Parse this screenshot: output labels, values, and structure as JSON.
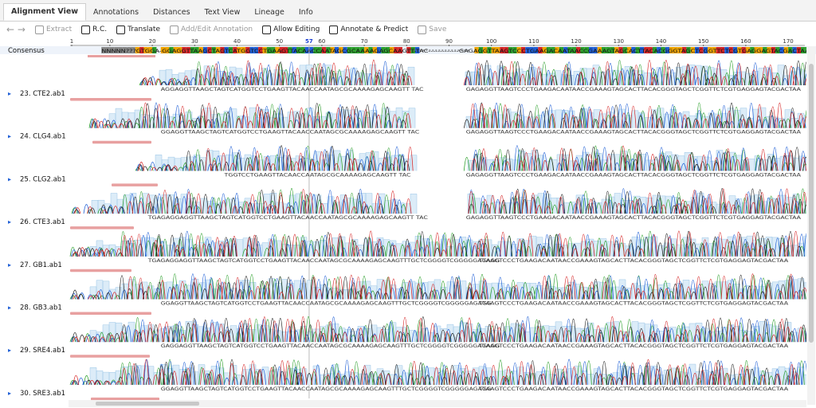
{
  "tabs": [
    "Alignment View",
    "Annotations",
    "Distances",
    "Text View",
    "Lineage",
    "Info"
  ],
  "toolbar": [
    "Extract",
    "R.C.",
    "Translate",
    "Add/Edit Annotation",
    "Allow Editing",
    "Annotate & Predict",
    "Save"
  ],
  "ruler": {
    "labels": [
      1,
      10,
      20,
      30,
      40,
      50,
      60,
      70,
      80,
      90,
      100,
      110,
      120,
      130,
      140,
      150,
      160,
      170
    ],
    "cursor": 57
  },
  "consensus": {
    "label": "Consensus",
    "sequence": "NNNNN???GTGGA-GGAGGTTAAGCTAGTCATGGTCCTGAAGTTACAACCAATAGCGCAAAAGAGCAAGTT-TAC-------------GAGAGGTTAAGTCCCTGAAGACAATAACCGAAAGTAGCACTTACACGGGTAGCTCGGTTCTCGTGAGGAGTACGACTAA"
  },
  "rows": [
    {
      "name": "23. CTE2.ab1",
      "seq_a": "AGGAGGTTAAGCTAGTCATGGTCCTGAAGTTACAACCAATAGCGCAAAAGAGCAAGTT TAC",
      "seq_b": "GAGAGGTTAAGTCCCTGAAGACAATAACCGAAAGTAGCACTTACACGGGTAGCTCGGTTCTCGTGAGGAGTACGACTAA"
    },
    {
      "name": "24. CLG4.ab1",
      "seq_a": "GGAGGTTAAGCTAGTCATGGTCCTGAAGTTACAACCAATAGCGCAAAAGAGCAAGTT TAC",
      "seq_b": "GAGAGGTTAAGTCCCTGAAGACAATAACCGAAAGTAGCACTTACACGGGTAGCTCGGTTCTCGTGAGGAGTACGACTAA"
    },
    {
      "name": "25. CLG2.ab1",
      "seq_a": "TGGTCCTGAAGTTACAACCAATAGCGCAAAAGAGCAAGTT TAC",
      "seq_b": "GAGAGGTTAAGTCCCTGAAGACAATAACCGAAAGTAGCACTTACACGGGTAGCTCGGTTCTCGTGAGGAGTACGACTAA"
    },
    {
      "name": "26. CTE3.ab1",
      "seq_a": "TGAGAGGAGGTTAAGCTAGTCATGGTCCTGAAGTTACAACCAATAGCGCAAAAGAGCAAGTT TAC",
      "seq_b": "GAGAGGTTAAGTCCCTGAAGACAATAACCGAAAGTAGCACTTACACGGGTAGCTCGGTTCTCGTGAGGAGTACGACTAA"
    },
    {
      "name": "27. GB1.ab1",
      "seq_a": "TGAGAGGAGGTTAAGCTAGTCATGGTCCTGAAGTTACAACCAATAGCGCAAAAGAGCAAGTTTGCTCGGGGTCGGGGGAGAGG",
      "seq_b": "TTAAGTCCCTGAAGACAATAACCGAAAGTAGCACTTACACGGGTAGCTCGGTTCTCGTGAGGAGTACGACTAA"
    },
    {
      "name": "28. GB3.ab1",
      "seq_a": "GGAGGTTAAGCTAGTCATGGTCCTGAAGTTACAACCAATAGCGCAAAAGAGCAAGTTTGCTCGGGGTCGGGGGAGAGG",
      "seq_b": "TTAAGTCCCTGAAGACAATAACCGAAAGTAGCACTTACACGGGTAGCTCGGTTCTCGTGAGGAGTACGACTAA"
    },
    {
      "name": "29. SRE4.ab1",
      "seq_a": "GAGGAGGTTAAGCTAGTCATGGTCCTGAAGTTACAACCAATAGCGCAAAAGAGCAAGTTTGCTCGGGGTCGGGGGAGAGG",
      "seq_b": "TTAAGTCCCTGAAGACAATAACCGAAAGTAGCACTTACACGGGTAGCTCGGTTCTCGTGAGGAGTACGACTAA"
    },
    {
      "name": "30. SRE3.ab1",
      "seq_a": "GGAGGTTAAGCTAGTCATGGTCCTGAAGTTACAACCAATAGCGCAAAAGAGCAAGTTTGCTCGGGGTCGGGGGAGAGG",
      "seq_b": "TTAAGTCCCTGAAGACAATAACCGAAAGTAGCACTTACACGGGTAGCTCGGTTCTCGTGAGGAGTACGACTAA"
    }
  ]
}
